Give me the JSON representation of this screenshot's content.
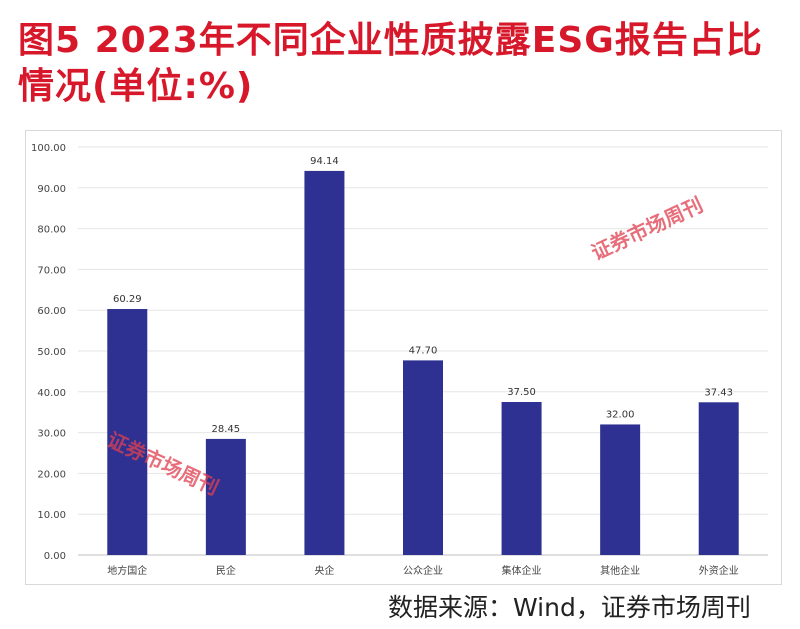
{
  "title": "图5  2023年不同企业性质披露ESG报告占比情况(单位:%)",
  "source": "数据来源：Wind，证券市场周刊",
  "watermark": "证券市场周刊",
  "chart_data": {
    "type": "bar",
    "categories": [
      "地方国企",
      "民企",
      "央企",
      "公众企业",
      "集体企业",
      "其他企业",
      "外资企业"
    ],
    "values": [
      60.29,
      28.45,
      94.14,
      47.7,
      37.5,
      32.0,
      37.43
    ],
    "value_labels": [
      "60.29",
      "28.45",
      "94.14",
      "47.70",
      "37.50",
      "32.00",
      "37.43"
    ],
    "ylim": [
      0,
      100
    ],
    "yticks": [
      "0.00",
      "10.00",
      "20.00",
      "30.00",
      "40.00",
      "50.00",
      "60.00",
      "70.00",
      "80.00",
      "90.00",
      "100.00"
    ],
    "grid": true,
    "bar_color": "#2e3192"
  }
}
